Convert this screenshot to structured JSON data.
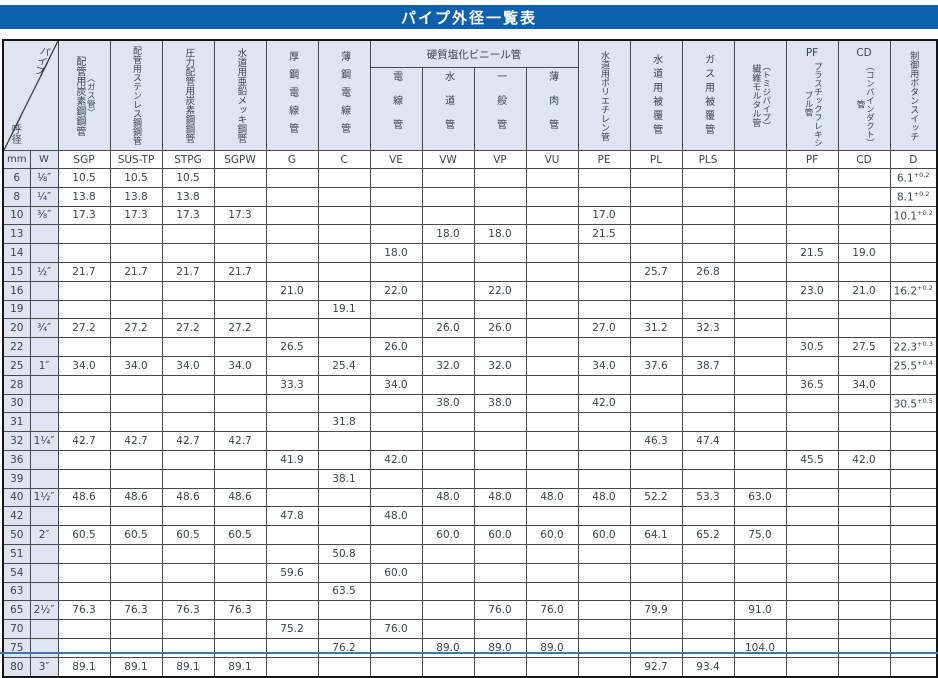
{
  "title": "パイプ外径一覧表",
  "colors": {
    "title_bar_blue": "#0d60ad",
    "header_bg": "#dee4f1",
    "grid_line": "#4a4a4a",
    "text": "#3d444c"
  },
  "table": {
    "corner_bottom": "呼径",
    "corner_top": "パイプ",
    "unit_mm": "mm",
    "unit_w": "W",
    "group": {
      "label": "硬質塩化ビニール管"
    },
    "columns": [
      {
        "name": "配管用炭素鋼鋼管",
        "paren": "〈ガス管〉",
        "code": "SGP"
      },
      {
        "name": "配管用ステンレス鋼鋼管",
        "code": "SUS-TP"
      },
      {
        "name": "圧力配管用炭素鋼鋼管",
        "code": "STPG"
      },
      {
        "name": "水道用亜鉛メッキ鋼管",
        "code": "SGPW"
      },
      {
        "name": "厚鋼電線管",
        "code": "G"
      },
      {
        "name": "薄鋼電線管",
        "code": "C"
      },
      {
        "name": "電線管",
        "code": "VE"
      },
      {
        "name": "水道管",
        "code": "VW"
      },
      {
        "name": "一般管",
        "code": "VP"
      },
      {
        "name": "薄肉管",
        "code": "VU"
      },
      {
        "name": "水道用ポリエチレン管",
        "code": "PE"
      },
      {
        "name": "水道用被覆管",
        "code": "PL"
      },
      {
        "name": "ガス用被覆管",
        "code": "PLS"
      },
      {
        "name": "繊維モルタル管",
        "paren": "（トミジパイプ）",
        "code": ""
      },
      {
        "latin": "PF",
        "name": "プラスチックフレキシブル管",
        "code": "PF"
      },
      {
        "latin": "CD",
        "name": "（コンバインダクト）管",
        "code": "CD"
      },
      {
        "name": "制御用ボタンスイッチ",
        "code": "D"
      }
    ],
    "rows": [
      {
        "mm": "6",
        "w": "⅛″",
        "cells": [
          "10.5",
          "10.5",
          "10.5",
          "",
          "",
          "",
          "",
          "",
          "",
          "",
          "",
          "",
          "",
          "",
          "",
          "",
          "6.1+0.2"
        ]
      },
      {
        "mm": "8",
        "w": "¼″",
        "cells": [
          "13.8",
          "13.8",
          "13.8",
          "",
          "",
          "",
          "",
          "",
          "",
          "",
          "",
          "",
          "",
          "",
          "",
          "",
          "8.1+0.2"
        ]
      },
      {
        "mm": "10",
        "w": "⅜″",
        "cells": [
          "17.3",
          "17.3",
          "17.3",
          "17.3",
          "",
          "",
          "",
          "",
          "",
          "",
          "17.0",
          "",
          "",
          "",
          "",
          "",
          "10.1+0.2"
        ]
      },
      {
        "mm": "13",
        "w": "",
        "cells": [
          "",
          "",
          "",
          "",
          "",
          "",
          "",
          "18.0",
          "18.0",
          "",
          "21.5",
          "",
          "",
          "",
          "",
          "",
          ""
        ]
      },
      {
        "mm": "14",
        "w": "",
        "cells": [
          "",
          "",
          "",
          "",
          "",
          "",
          "18.0",
          "",
          "",
          "",
          "",
          "",
          "",
          "",
          "21.5",
          "19.0",
          ""
        ]
      },
      {
        "mm": "15",
        "w": "½″",
        "cells": [
          "21.7",
          "21.7",
          "21.7",
          "21.7",
          "",
          "",
          "",
          "",
          "",
          "",
          "",
          "25.7",
          "26.8",
          "",
          "",
          "",
          ""
        ]
      },
      {
        "mm": "16",
        "w": "",
        "cells": [
          "",
          "",
          "",
          "",
          "21.0",
          "",
          "22.0",
          "",
          "22.0",
          "",
          "",
          "",
          "",
          "",
          "23.0",
          "21.0",
          "16.2+0.2"
        ]
      },
      {
        "mm": "19",
        "w": "",
        "cells": [
          "",
          "",
          "",
          "",
          "",
          "19.1",
          "",
          "",
          "",
          "",
          "",
          "",
          "",
          "",
          "",
          "",
          ""
        ]
      },
      {
        "mm": "20",
        "w": "¾″",
        "cells": [
          "27.2",
          "27.2",
          "27.2",
          "27.2",
          "",
          "",
          "",
          "26.0",
          "26.0",
          "",
          "27.0",
          "31.2",
          "32.3",
          "",
          "",
          "",
          ""
        ]
      },
      {
        "mm": "22",
        "w": "",
        "cells": [
          "",
          "",
          "",
          "",
          "26.5",
          "",
          "26.0",
          "",
          "",
          "",
          "",
          "",
          "",
          "",
          "30.5",
          "27.5",
          "22.3+0.3"
        ]
      },
      {
        "mm": "25",
        "w": "1″",
        "cells": [
          "34.0",
          "34.0",
          "34.0",
          "34.0",
          "",
          "25.4",
          "",
          "32.0",
          "32.0",
          "",
          "34.0",
          "37.6",
          "38.7",
          "",
          "",
          "",
          "25.5+0.4"
        ]
      },
      {
        "mm": "28",
        "w": "",
        "cells": [
          "",
          "",
          "",
          "",
          "33.3",
          "",
          "34.0",
          "",
          "",
          "",
          "",
          "",
          "",
          "",
          "36.5",
          "34.0",
          ""
        ]
      },
      {
        "mm": "30",
        "w": "",
        "cells": [
          "",
          "",
          "",
          "",
          "",
          "",
          "",
          "38.0",
          "38.0",
          "",
          "42.0",
          "",
          "",
          "",
          "",
          "",
          "30.5+0.5"
        ]
      },
      {
        "mm": "31",
        "w": "",
        "cells": [
          "",
          "",
          "",
          "",
          "",
          "31.8",
          "",
          "",
          "",
          "",
          "",
          "",
          "",
          "",
          "",
          "",
          ""
        ]
      },
      {
        "mm": "32",
        "w": "1¼″",
        "cells": [
          "42.7",
          "42.7",
          "42.7",
          "42.7",
          "",
          "",
          "",
          "",
          "",
          "",
          "",
          "46.3",
          "47.4",
          "",
          "",
          "",
          ""
        ]
      },
      {
        "mm": "36",
        "w": "",
        "cells": [
          "",
          "",
          "",
          "",
          "41.9",
          "",
          "42.0",
          "",
          "",
          "",
          "",
          "",
          "",
          "",
          "45.5",
          "42.0",
          ""
        ]
      },
      {
        "mm": "39",
        "w": "",
        "cells": [
          "",
          "",
          "",
          "",
          "",
          "38.1",
          "",
          "",
          "",
          "",
          "",
          "",
          "",
          "",
          "",
          "",
          ""
        ]
      },
      {
        "mm": "40",
        "w": "1½″",
        "cells": [
          "48.6",
          "48.6",
          "48.6",
          "48.6",
          "",
          "",
          "",
          "48.0",
          "48.0",
          "48.0",
          "48.0",
          "52.2",
          "53.3",
          "63.0",
          "",
          "",
          ""
        ]
      },
      {
        "mm": "42",
        "w": "",
        "cells": [
          "",
          "",
          "",
          "",
          "47.8",
          "",
          "48.0",
          "",
          "",
          "",
          "",
          "",
          "",
          "",
          "",
          "",
          ""
        ]
      },
      {
        "mm": "50",
        "w": "2″",
        "cells": [
          "60.5",
          "60.5",
          "60.5",
          "60.5",
          "",
          "",
          "",
          "60.0",
          "60.0",
          "60.0",
          "60.0",
          "64.1",
          "65.2",
          "75.0",
          "",
          "",
          ""
        ]
      },
      {
        "mm": "51",
        "w": "",
        "cells": [
          "",
          "",
          "",
          "",
          "",
          "50.8",
          "",
          "",
          "",
          "",
          "",
          "",
          "",
          "",
          "",
          "",
          ""
        ]
      },
      {
        "mm": "54",
        "w": "",
        "cells": [
          "",
          "",
          "",
          "",
          "59.6",
          "",
          "60.0",
          "",
          "",
          "",
          "",
          "",
          "",
          "",
          "",
          "",
          ""
        ]
      },
      {
        "mm": "63",
        "w": "",
        "cells": [
          "",
          "",
          "",
          "",
          "",
          "63.5",
          "",
          "",
          "",
          "",
          "",
          "",
          "",
          "",
          "",
          "",
          ""
        ]
      },
      {
        "mm": "65",
        "w": "2½″",
        "cells": [
          "76.3",
          "76.3",
          "76.3",
          "76.3",
          "",
          "",
          "",
          "",
          "76.0",
          "76.0",
          "",
          "79.9",
          "",
          "91.0",
          "",
          "",
          ""
        ]
      },
      {
        "mm": "70",
        "w": "",
        "cells": [
          "",
          "",
          "",
          "",
          "75.2",
          "",
          "76.0",
          "",
          "",
          "",
          "",
          "",
          "",
          "",
          "",
          "",
          ""
        ]
      },
      {
        "mm": "75",
        "w": "",
        "cells": [
          "",
          "",
          "",
          "",
          "",
          "76.2",
          "",
          "89.0",
          "89.0",
          "89.0",
          "",
          "",
          "",
          "104.0",
          "",
          "",
          ""
        ]
      },
      {
        "mm": "80",
        "w": "3″",
        "cells": [
          "89.1",
          "89.1",
          "89.1",
          "89.1",
          "",
          "",
          "",
          "",
          "",
          "",
          "",
          "92.7",
          "93.4",
          "",
          "",
          "",
          ""
        ]
      }
    ]
  }
}
